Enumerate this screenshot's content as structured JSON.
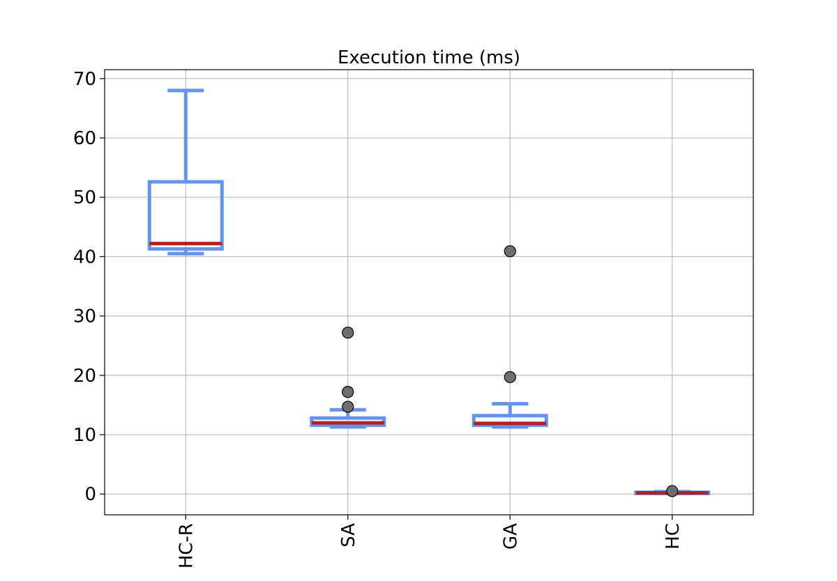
{
  "chart_data": {
    "type": "boxplot",
    "title": "Execution time (ms)",
    "xlabel": "",
    "ylabel": "",
    "ylim": [
      -3.5,
      71.5
    ],
    "yticks": [
      0,
      10,
      20,
      30,
      40,
      50,
      60,
      70
    ],
    "grid": true,
    "legend": "none",
    "categories": [
      "HC-R",
      "SA",
      "GA",
      "HC"
    ],
    "boxes": [
      {
        "category": "HC-R",
        "whisker_low": 40.5,
        "q1": 41.3,
        "median": 42.2,
        "q3": 52.6,
        "whisker_high": 68.0,
        "outliers": []
      },
      {
        "category": "SA",
        "whisker_low": 11.3,
        "q1": 11.6,
        "median": 12.0,
        "q3": 12.8,
        "whisker_high": 14.2,
        "outliers": [
          14.7,
          17.2,
          27.2
        ]
      },
      {
        "category": "GA",
        "whisker_low": 11.3,
        "q1": 11.6,
        "median": 11.9,
        "q3": 13.2,
        "whisker_high": 15.2,
        "outliers": [
          19.7,
          40.9
        ]
      },
      {
        "category": "HC",
        "whisker_low": 0.1,
        "q1": 0.1,
        "median": 0.2,
        "q3": 0.3,
        "whisker_high": 0.4,
        "outliers": [
          0.5
        ]
      }
    ],
    "colors": {
      "box": "#6495ed",
      "median": "#b22222",
      "outlier_fill": "#6e6e6e",
      "outlier_edge": "#000000",
      "grid": "#b0b0b0",
      "axes": "#000000"
    }
  }
}
